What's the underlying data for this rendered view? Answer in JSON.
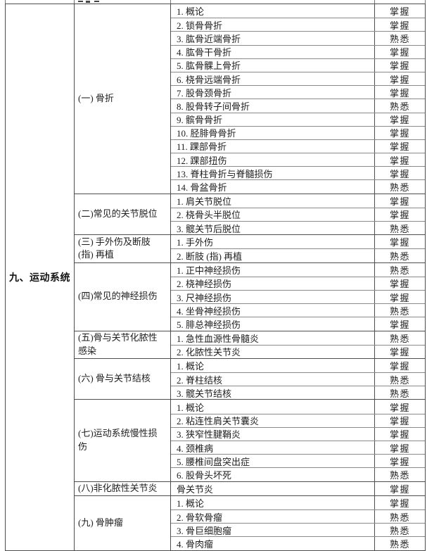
{
  "table": {
    "system_label": "九、运动系统",
    "mastery_levels": [
      "掌握",
      "熟悉"
    ],
    "sections": [
      {
        "category": "(一) 骨折",
        "items": [
          {
            "label": "1. 概论",
            "level": "掌握"
          },
          {
            "label": "2. 锁骨骨折",
            "level": "掌握"
          },
          {
            "label": "3. 肱骨近端骨折",
            "level": "熟悉"
          },
          {
            "label": "4. 肱骨干骨折",
            "level": "掌握"
          },
          {
            "label": "5. 肱骨髁上骨折",
            "level": "掌握"
          },
          {
            "label": "6. 桡骨远端骨折",
            "level": "掌握"
          },
          {
            "label": "7. 股骨颈骨折",
            "level": "掌握"
          },
          {
            "label": "8. 股骨转子间骨折",
            "level": "熟悉"
          },
          {
            "label": "9. 髌骨骨折",
            "level": "掌握"
          },
          {
            "label": "10. 胫腓骨骨折",
            "level": "掌握"
          },
          {
            "label": "11. 踝部骨折",
            "level": "掌握"
          },
          {
            "label": "12. 踝部扭伤",
            "level": "掌握"
          },
          {
            "label": "13. 脊柱骨折与脊髓损伤",
            "level": "掌握"
          },
          {
            "label": "14. 骨盆骨折",
            "level": "熟悉"
          }
        ]
      },
      {
        "category": "(二)常见的关节脱位",
        "items": [
          {
            "label": "1. 肩关节脱位",
            "level": "掌握"
          },
          {
            "label": "2. 桡骨头半脱位",
            "level": "掌握"
          },
          {
            "label": "3. 髋关节后脱位",
            "level": "熟悉"
          }
        ]
      },
      {
        "category": "(三) 手外伤及断肢\n(指) 再植",
        "items": [
          {
            "label": "1. 手外伤",
            "level": "掌握"
          },
          {
            "label": "2. 断肢 (指) 再植",
            "level": "熟悉"
          }
        ]
      },
      {
        "category": "(四)常见的神经损伤",
        "items": [
          {
            "label": "1. 正中神经损伤",
            "level": "熟悉"
          },
          {
            "label": "2. 桡神经损伤",
            "level": "掌握"
          },
          {
            "label": "3. 尺神经损伤",
            "level": "掌握"
          },
          {
            "label": "4. 坐骨神经损伤",
            "level": "熟悉"
          },
          {
            "label": "5. 腓总神经损伤",
            "level": "掌握"
          }
        ]
      },
      {
        "category": "(五)骨与关节化脓性\n感染",
        "items": [
          {
            "label": "1. 急性血源性骨髓炎",
            "level": "熟悉"
          },
          {
            "label": "2. 化脓性关节炎",
            "level": "掌握"
          }
        ]
      },
      {
        "category": "(六) 骨与关节结核",
        "items": [
          {
            "label": "1. 概论",
            "level": "掌握"
          },
          {
            "label": "2. 脊柱结核",
            "level": "熟悉"
          },
          {
            "label": "3. 髋关节结核",
            "level": "熟悉"
          }
        ]
      },
      {
        "category": "(七)运动系统慢性损\n伤",
        "items": [
          {
            "label": "1. 概论",
            "level": "掌握"
          },
          {
            "label": "2. 粘连性肩关节囊炎",
            "level": "掌握"
          },
          {
            "label": "3. 狭窄性腱鞘炎",
            "level": "掌握"
          },
          {
            "label": "4. 颈椎病",
            "level": "掌握"
          },
          {
            "label": "5. 腰椎间盘突出症",
            "level": "掌握"
          },
          {
            "label": "6. 股骨头坏死",
            "level": "熟悉"
          }
        ]
      },
      {
        "category": "(八)非化脓性关节炎",
        "items": [
          {
            "label": "骨关节炎",
            "level": "掌握"
          }
        ]
      },
      {
        "category": "(九) 骨肿瘤",
        "items": [
          {
            "label": "1. 概论",
            "level": "掌握"
          },
          {
            "label": "2. 骨软骨瘤",
            "level": "熟悉"
          },
          {
            "label": "3. 骨巨细胞瘤",
            "level": "熟悉"
          },
          {
            "label": "4. 骨肉瘤",
            "level": "熟悉"
          }
        ]
      }
    ]
  }
}
